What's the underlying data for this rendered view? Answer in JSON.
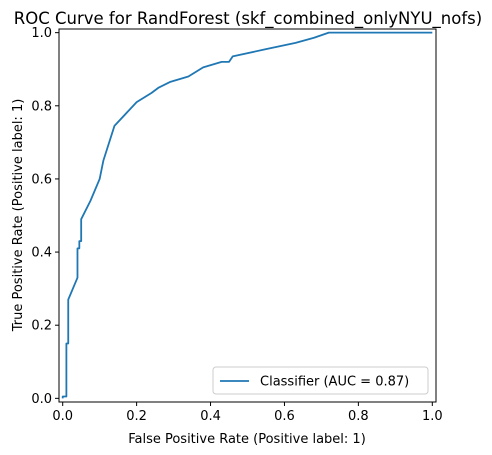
{
  "chart_data": {
    "type": "line",
    "title": "ROC Curve for RandForest (skf_combined_onlyNYU_nofs)",
    "xlabel": "False Positive Rate (Positive label: 1)",
    "ylabel": "True Positive Rate (Positive label: 1)",
    "xlim": [
      -0.01,
      1.01
    ],
    "ylim": [
      -0.01,
      1.01
    ],
    "x_ticks": [
      0.0,
      0.2,
      0.4,
      0.6,
      0.8,
      1.0
    ],
    "y_ticks": [
      0.0,
      0.2,
      0.4,
      0.6,
      0.8,
      1.0
    ],
    "x_tick_labels": [
      "0.0",
      "0.2",
      "0.4",
      "0.6",
      "0.8",
      "1.0"
    ],
    "y_tick_labels": [
      "0.0",
      "0.2",
      "0.4",
      "0.6",
      "0.8",
      "1.0"
    ],
    "grid": false,
    "legend_position": "lower-right",
    "series": [
      {
        "name": "Classifier (AUC = 0.87)",
        "color": "#1f77b4",
        "x": [
          0.0,
          0.0,
          0.01,
          0.01,
          0.015,
          0.015,
          0.04,
          0.04,
          0.045,
          0.045,
          0.05,
          0.05,
          0.075,
          0.1,
          0.11,
          0.14,
          0.2,
          0.24,
          0.26,
          0.29,
          0.34,
          0.38,
          0.43,
          0.45,
          0.46,
          0.55,
          0.63,
          0.68,
          0.72,
          1.0
        ],
        "y": [
          0.0,
          0.005,
          0.005,
          0.15,
          0.15,
          0.27,
          0.33,
          0.41,
          0.41,
          0.43,
          0.43,
          0.49,
          0.54,
          0.6,
          0.65,
          0.745,
          0.81,
          0.835,
          0.85,
          0.865,
          0.88,
          0.905,
          0.92,
          0.92,
          0.935,
          0.955,
          0.972,
          0.986,
          1.0,
          1.0
        ]
      }
    ]
  }
}
